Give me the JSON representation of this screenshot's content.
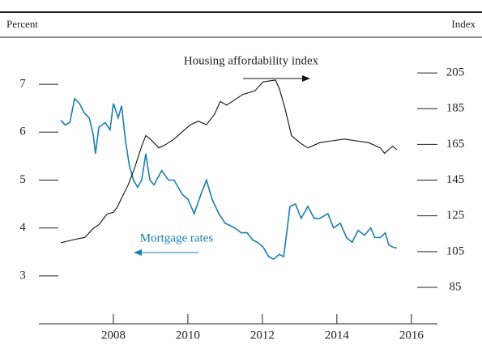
{
  "chart_data": {
    "type": "line",
    "left_axis_label": "Percent",
    "right_axis_label": "Index",
    "annotations": [
      "Housing affordability index",
      "Mortgage rates"
    ],
    "xlim": [
      2006,
      2016.7
    ],
    "xticks": [
      2008,
      2010,
      2012,
      2014,
      2016
    ],
    "ylim": [
      2.0,
      7.83
    ],
    "yticks": [
      3,
      4,
      5,
      6,
      7
    ],
    "y2lim": [
      64.6,
      220.9
    ],
    "y2ticks": [
      85,
      105,
      125,
      145,
      165,
      185,
      205
    ],
    "series": [
      {
        "name": "Mortgage rates",
        "color": "#1a7fb0",
        "axis": "y",
        "x": [
          2006.59,
          2006.7,
          2006.83,
          2006.96,
          2007.09,
          2007.22,
          2007.35,
          2007.46,
          2007.52,
          2007.61,
          2007.78,
          2007.91,
          2008.0,
          2008.13,
          2008.22,
          2008.33,
          2008.43,
          2008.54,
          2008.65,
          2008.76,
          2008.87,
          2008.98,
          2009.09,
          2009.3,
          2009.48,
          2009.63,
          2009.85,
          2010.0,
          2010.17,
          2010.35,
          2010.5,
          2010.65,
          2010.83,
          2011.0,
          2011.26,
          2011.43,
          2011.59,
          2011.74,
          2011.87,
          2012.02,
          2012.17,
          2012.3,
          2012.46,
          2012.57,
          2012.67,
          2012.74,
          2012.89,
          2013.04,
          2013.22,
          2013.39,
          2013.54,
          2013.76,
          2013.91,
          2014.09,
          2014.26,
          2014.41,
          2014.57,
          2014.74,
          2014.91,
          2015.02,
          2015.17,
          2015.3,
          2015.39,
          2015.5,
          2015.61
        ],
        "values": [
          6.25,
          6.15,
          6.2,
          6.7,
          6.6,
          6.4,
          6.3,
          5.95,
          5.55,
          6.1,
          6.2,
          6.05,
          6.6,
          6.3,
          6.55,
          5.8,
          5.3,
          5.0,
          4.85,
          5.0,
          5.55,
          5.0,
          4.9,
          5.2,
          5.0,
          5.0,
          4.7,
          4.6,
          4.3,
          4.7,
          5.0,
          4.6,
          4.3,
          4.1,
          4.0,
          3.9,
          3.9,
          3.75,
          3.7,
          3.6,
          3.4,
          3.35,
          3.45,
          3.4,
          4.0,
          4.45,
          4.5,
          4.2,
          4.45,
          4.2,
          4.2,
          4.3,
          4.0,
          4.1,
          3.8,
          3.7,
          3.95,
          3.85,
          4.0,
          3.8,
          3.8,
          3.9,
          3.65,
          3.6,
          3.58
        ]
      },
      {
        "name": "Housing affordability index",
        "color": "#111111",
        "axis": "y2",
        "x": [
          2006.59,
          2006.8,
          2007.0,
          2007.24,
          2007.46,
          2007.61,
          2007.83,
          2008.0,
          2008.11,
          2008.22,
          2008.39,
          2008.54,
          2008.65,
          2008.76,
          2008.87,
          2009.04,
          2009.22,
          2009.41,
          2009.63,
          2009.85,
          2010.07,
          2010.28,
          2010.5,
          2010.72,
          2010.87,
          2011.04,
          2011.26,
          2011.48,
          2011.8,
          2012.02,
          2012.35,
          2012.46,
          2012.61,
          2012.78,
          2013.0,
          2013.22,
          2013.54,
          2013.87,
          2014.2,
          2014.52,
          2014.85,
          2015.17,
          2015.28,
          2015.39,
          2015.5,
          2015.61
        ],
        "values": [
          110,
          111,
          112,
          113,
          118,
          120,
          126,
          127,
          130,
          135,
          142,
          150,
          157,
          164,
          170,
          167,
          163,
          165,
          168,
          172,
          176,
          178,
          176,
          182,
          189,
          187,
          190,
          193,
          195,
          200,
          201,
          196,
          185,
          170,
          166,
          163,
          166,
          167,
          168,
          167,
          166,
          163,
          160,
          162,
          164,
          162
        ]
      }
    ]
  }
}
